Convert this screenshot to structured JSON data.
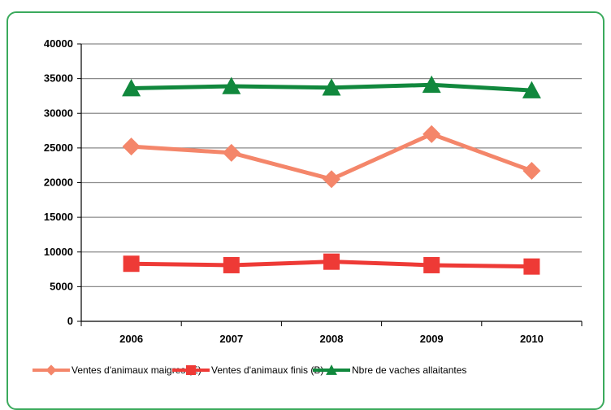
{
  "chart_data": {
    "type": "line",
    "categories": [
      "2006",
      "2007",
      "2008",
      "2009",
      "2010"
    ],
    "series": [
      {
        "name": "Ventes d'animaux maigres (E)",
        "color": "#f4866a",
        "marker": "diamond",
        "values": [
          25200,
          24300,
          20500,
          27000,
          21700
        ]
      },
      {
        "name": "Ventes d'animaux finis (B)",
        "color": "#ee3a36",
        "marker": "square",
        "values": [
          8300,
          8100,
          8600,
          8100,
          7900
        ]
      },
      {
        "name": "Nbre de vaches allaitantes",
        "color": "#11883d",
        "marker": "triangle",
        "values": [
          33600,
          33900,
          33700,
          34100,
          33300
        ]
      }
    ],
    "yticks": [
      "0",
      "5000",
      "10000",
      "15000",
      "20000",
      "25000",
      "30000",
      "35000",
      "40000"
    ],
    "ylim": [
      0,
      40000
    ],
    "grid": true,
    "legend_position": "bottom",
    "frame_color": "#3aaa5c"
  }
}
